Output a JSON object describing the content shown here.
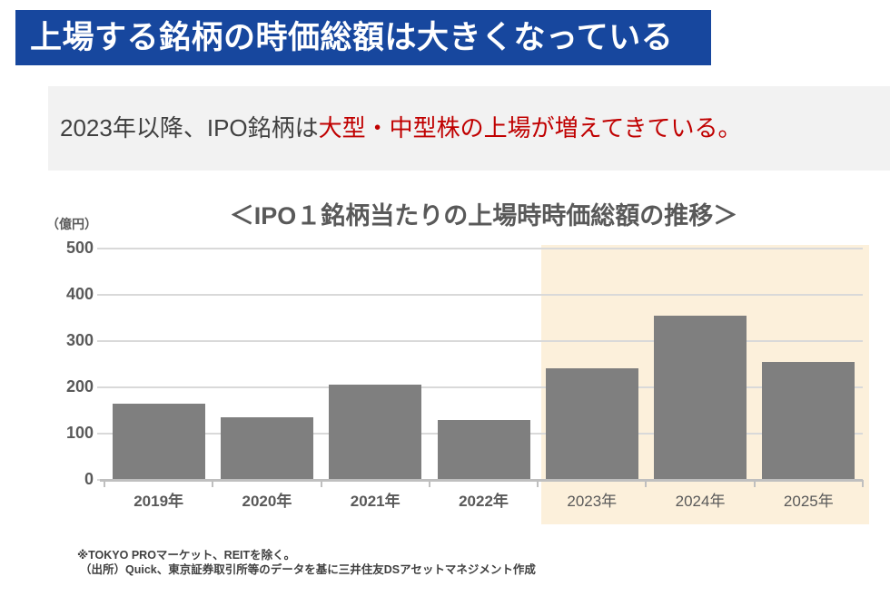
{
  "header": {
    "title": "上場する銘柄の時価総額は大きくなっている",
    "bg_color": "#17479E",
    "text_color": "#FFFFFF"
  },
  "subtitle": {
    "normal_part": "2023年以降、IPO銘柄は",
    "emphasis_part": "大型・中型株の上場が増えてきている。",
    "normal_color": "#404040",
    "emphasis_color": "#C00000",
    "bg_color": "#F2F2F2"
  },
  "chart_data": {
    "type": "bar",
    "title": "＜IPO１銘柄当たりの上場時時価総額の推移＞",
    "unit_label": "（億円）",
    "categories": [
      "2019年",
      "2020年",
      "2021年",
      "2022年",
      "2023年",
      "2024年",
      "2025年"
    ],
    "values": [
      165,
      135,
      205,
      130,
      240,
      355,
      255
    ],
    "ylim": [
      0,
      500
    ],
    "yticks": [
      0,
      100,
      200,
      300,
      400,
      500
    ],
    "grid": true,
    "legend": "none",
    "bar_color": "#7F7F7F",
    "grid_color": "#D9D9D9",
    "axis_color": "#BFBFBF",
    "label_color": "#595959",
    "bold_category_count": 4,
    "highlight": {
      "from_index": 4,
      "categories": [
        "2023年",
        "2024年",
        "2025年"
      ],
      "color": "#FCF0DB"
    }
  },
  "footnotes": {
    "line1": "※TOKYO PROマーケット、REITを除く。",
    "line2": "（出所）Quick、東京証券取引所等のデータを基に三井住友DSアセットマネジメント作成",
    "color": "#404040"
  }
}
